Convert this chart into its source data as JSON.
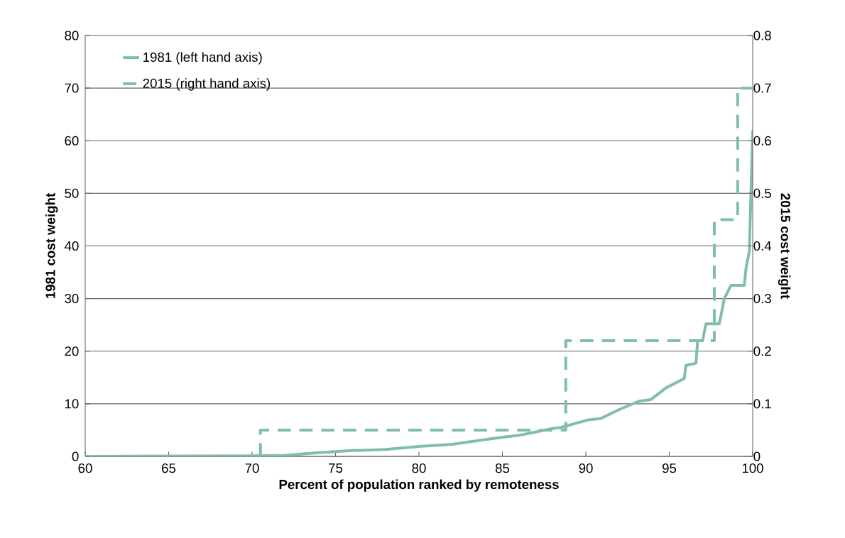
{
  "chart_data": {
    "type": "line",
    "xlabel": "Percent of population ranked by remoteness",
    "ylabel": "1981 cost weight",
    "y2label": "2015 cost weight",
    "xlim": [
      60,
      100
    ],
    "xticks": [
      60,
      65,
      70,
      75,
      80,
      85,
      90,
      95,
      100
    ],
    "ylim": [
      0,
      80
    ],
    "yticks": [
      0,
      10,
      20,
      30,
      40,
      50,
      60,
      70,
      80
    ],
    "y2lim": [
      0,
      0.8
    ],
    "y2ticks": [
      0,
      0.1,
      0.2,
      0.3,
      0.4,
      0.5,
      0.6,
      0.7,
      0.8
    ],
    "grid": "y",
    "legend": "top left",
    "series": [
      {
        "name": "1981 (left hand axis)",
        "type": "line",
        "color": "#7fbfa9",
        "line_style": "solid",
        "x": [
          60,
          70,
          72,
          74,
          76,
          78,
          80,
          82,
          84,
          84.7,
          86,
          88,
          88.5,
          90.1,
          90.9,
          92,
          93.2,
          93.9,
          94.8,
          95.9,
          96,
          96.6,
          96.7,
          97,
          97.2,
          98,
          98.3,
          98.7,
          99.45,
          99.5,
          99.6,
          99.8,
          100
        ],
        "values": [
          0,
          0.1,
          0.2,
          0.7,
          1.1,
          1.3,
          1.9,
          2.3,
          3.2,
          3.5,
          4,
          5.3,
          5.5,
          6.9,
          7.2,
          8.9,
          10.5,
          10.8,
          13,
          14.8,
          17.3,
          17.7,
          22,
          22,
          25.2,
          25.2,
          30,
          32.5,
          32.5,
          32.5,
          35.8,
          39,
          62
        ]
      },
      {
        "name": "2015 (right hand axis)",
        "type": "step",
        "axis": "y2",
        "color": "#7fbfa9",
        "line_style": "dashed",
        "x": [
          70.5,
          70.5,
          88.8,
          97.7,
          99.1,
          100
        ],
        "values": [
          0,
          0.05,
          0.22,
          0.45,
          0.7,
          0.7
        ]
      }
    ]
  }
}
